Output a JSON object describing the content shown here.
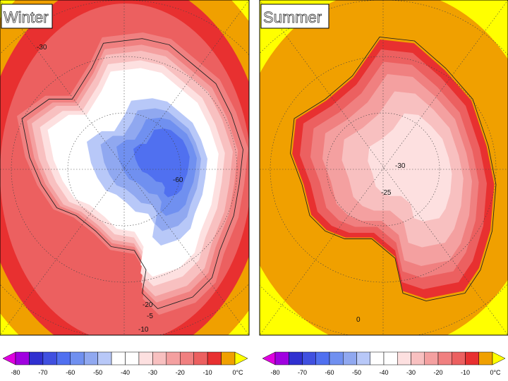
{
  "panels": [
    {
      "title": "Winter",
      "contour_labels": [
        "-60",
        "-20",
        "-5",
        "-10",
        "-30"
      ]
    },
    {
      "title": "Summer",
      "contour_labels": [
        "-25",
        "-30",
        "0"
      ]
    }
  ],
  "colorbar": {
    "ticks": [
      "-80",
      "-70",
      "-60",
      "-50",
      "-40",
      "-30",
      "-20",
      "-10",
      "0°C"
    ]
  }
}
